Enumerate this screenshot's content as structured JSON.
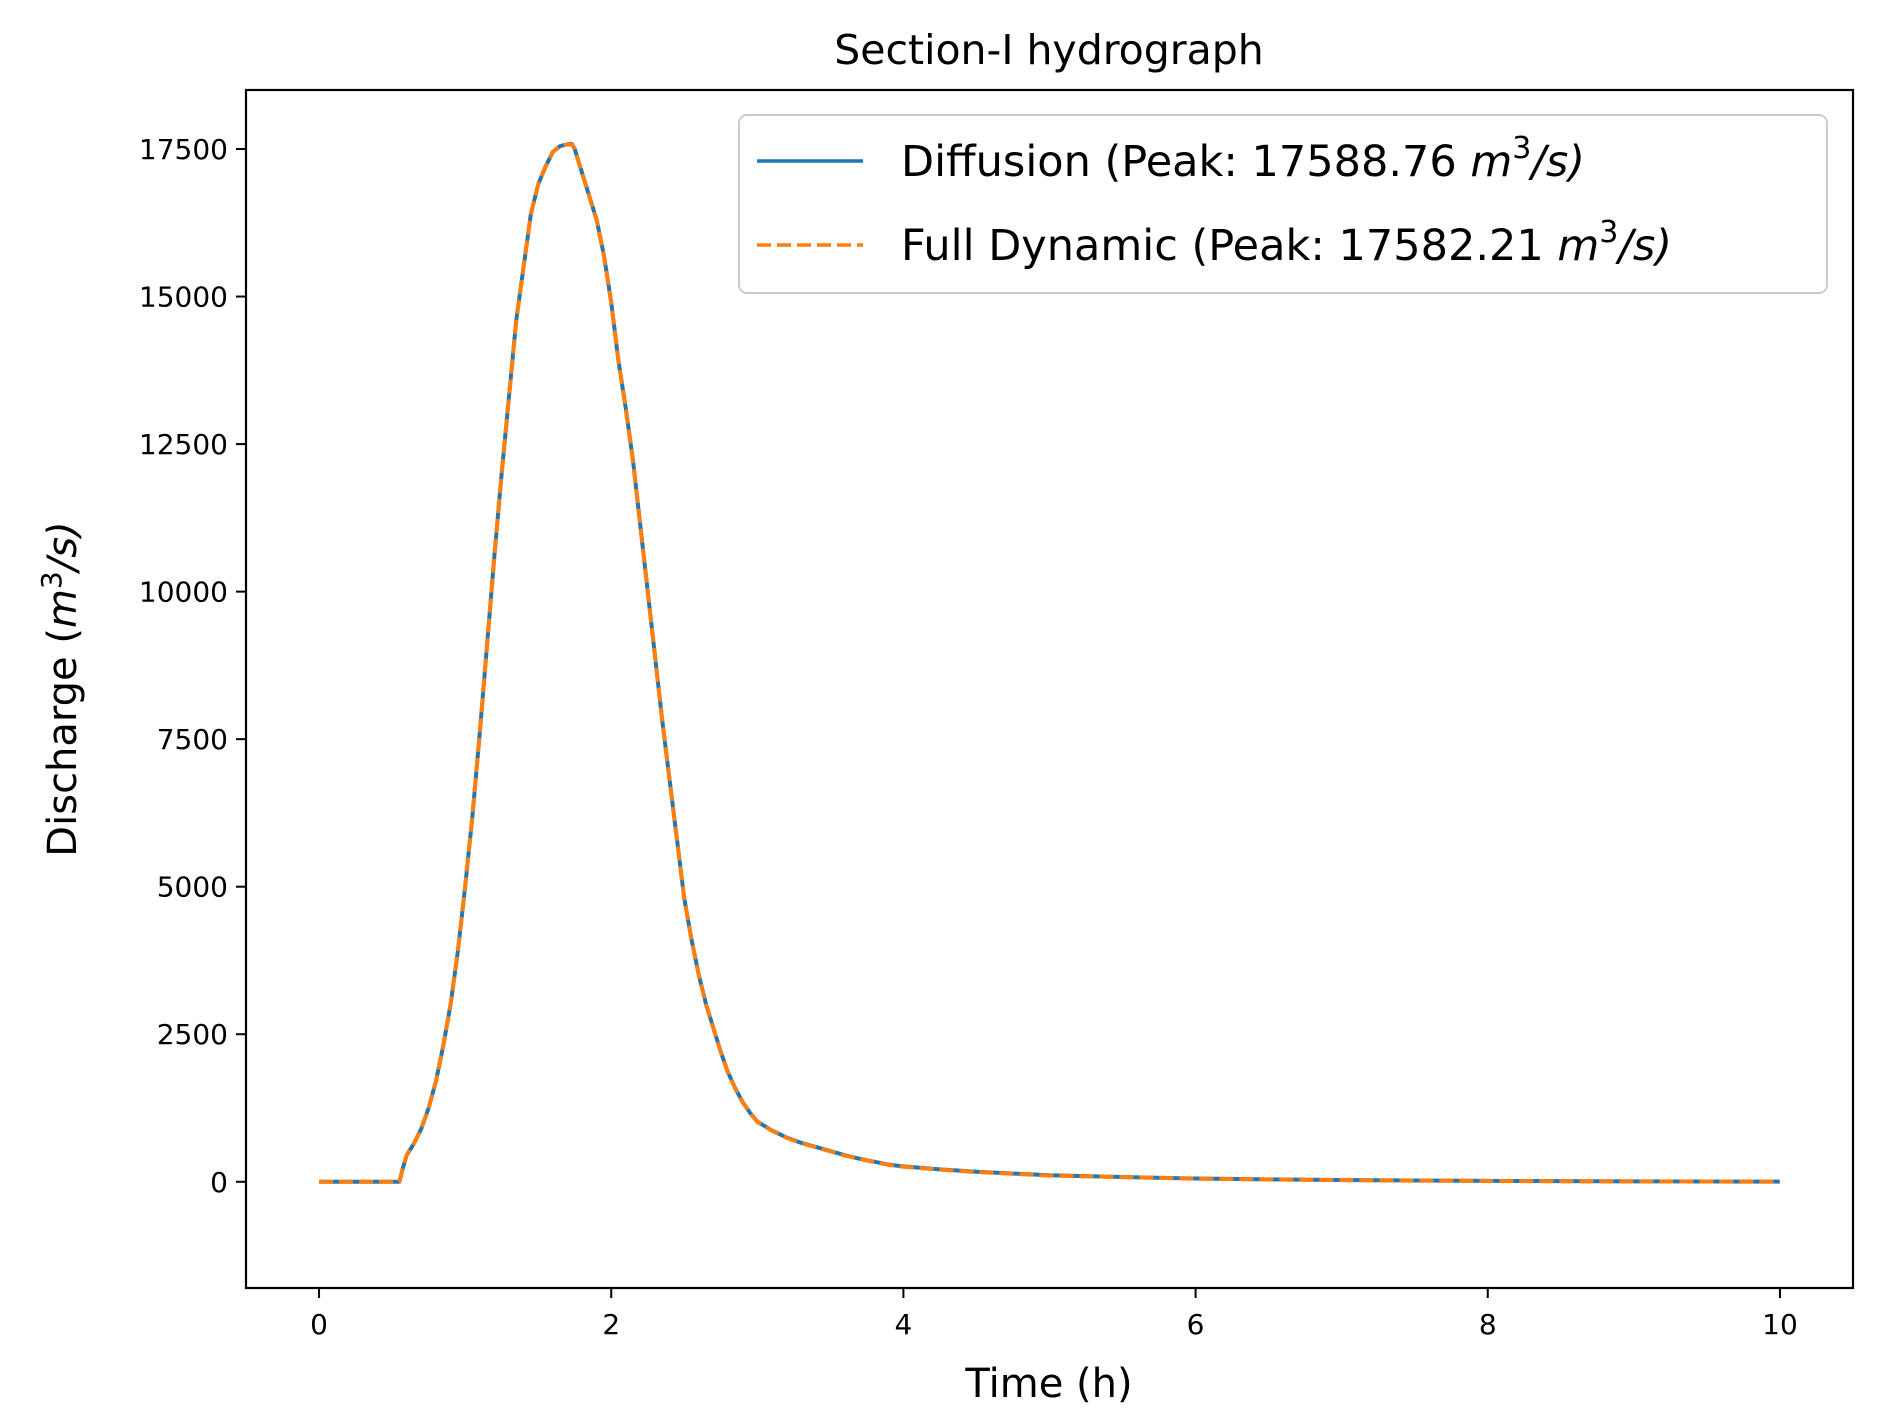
{
  "chart_data": {
    "type": "line",
    "title": "Section-I hydrograph",
    "xlabel": "Time (h)",
    "ylabel": {
      "prefix": "Discharge (",
      "var": "m",
      "sup": "3",
      "suffix": "/s)"
    },
    "xlim": [
      -0.5,
      10.5
    ],
    "ylim": [
      -1800,
      18500
    ],
    "xticks": [
      0,
      2,
      4,
      6,
      8,
      10
    ],
    "yticks": [
      0,
      2500,
      5000,
      7500,
      10000,
      12500,
      15000,
      17500
    ],
    "grid": false,
    "legend_position": "top-right",
    "series": [
      {
        "name": {
          "prefix": "Diffusion  (Peak: 17588.76 ",
          "var": "m",
          "sup": "3",
          "suffix": "/s)"
        },
        "color": "#1f77b4",
        "style": "solid",
        "x": [
          0,
          0.1,
          0.2,
          0.3,
          0.4,
          0.5,
          0.55,
          0.57,
          0.6,
          0.65,
          0.7,
          0.75,
          0.8,
          0.85,
          0.9,
          0.95,
          1.0,
          1.05,
          1.1,
          1.15,
          1.2,
          1.25,
          1.3,
          1.35,
          1.4,
          1.45,
          1.5,
          1.55,
          1.6,
          1.65,
          1.7,
          1.73,
          1.75,
          1.8,
          1.85,
          1.9,
          1.95,
          2.0,
          2.05,
          2.1,
          2.15,
          2.2,
          2.25,
          2.3,
          2.35,
          2.4,
          2.45,
          2.5,
          2.55,
          2.6,
          2.65,
          2.7,
          2.75,
          2.8,
          2.85,
          2.9,
          2.95,
          3.0,
          3.1,
          3.2,
          3.3,
          3.4,
          3.5,
          3.6,
          3.7,
          3.8,
          3.9,
          4.0,
          4.25,
          4.5,
          4.75,
          5.0,
          5.5,
          6.0,
          6.5,
          7.0,
          7.5,
          8.0,
          8.5,
          9.0,
          9.5,
          10.0
        ],
        "y": [
          0,
          0,
          0,
          0,
          0,
          0,
          0,
          200,
          450,
          650,
          900,
          1250,
          1700,
          2300,
          3000,
          3900,
          5000,
          6200,
          7600,
          9100,
          10600,
          12000,
          13300,
          14600,
          15500,
          16400,
          16900,
          17200,
          17450,
          17550,
          17580,
          17588.76,
          17500,
          17100,
          16700,
          16300,
          15700,
          14900,
          13900,
          13100,
          12200,
          11100,
          10000,
          8900,
          7800,
          6800,
          5800,
          4800,
          4100,
          3500,
          3000,
          2600,
          2200,
          1850,
          1580,
          1350,
          1170,
          1020,
          870,
          750,
          660,
          590,
          520,
          450,
          390,
          340,
          290,
          260,
          210,
          170,
          140,
          110,
          80,
          55,
          40,
          30,
          22,
          15,
          10,
          7,
          5,
          3
        ]
      },
      {
        "name": {
          "prefix": "Full Dynamic (Peak: 17582.21 ",
          "var": "m",
          "sup": "3",
          "suffix": "/s)"
        },
        "color": "#ff7f0e",
        "style": "dashed",
        "x": [
          0,
          0.1,
          0.2,
          0.3,
          0.4,
          0.5,
          0.55,
          0.57,
          0.6,
          0.65,
          0.7,
          0.75,
          0.8,
          0.85,
          0.9,
          0.95,
          1.0,
          1.05,
          1.1,
          1.15,
          1.2,
          1.25,
          1.3,
          1.35,
          1.4,
          1.45,
          1.5,
          1.55,
          1.6,
          1.65,
          1.7,
          1.73,
          1.75,
          1.8,
          1.85,
          1.9,
          1.95,
          2.0,
          2.05,
          2.1,
          2.15,
          2.2,
          2.25,
          2.3,
          2.35,
          2.4,
          2.45,
          2.5,
          2.55,
          2.6,
          2.65,
          2.7,
          2.75,
          2.8,
          2.85,
          2.9,
          2.95,
          3.0,
          3.1,
          3.2,
          3.3,
          3.4,
          3.5,
          3.6,
          3.7,
          3.8,
          3.9,
          4.0,
          4.25,
          4.5,
          4.75,
          5.0,
          5.5,
          6.0,
          6.5,
          7.0,
          7.5,
          8.0,
          8.5,
          9.0,
          9.5,
          10.0
        ],
        "y": [
          0,
          0,
          0,
          0,
          0,
          0,
          0,
          200,
          450,
          650,
          900,
          1250,
          1700,
          2300,
          3000,
          3900,
          5000,
          6200,
          7600,
          9100,
          10600,
          12000,
          13300,
          14600,
          15500,
          16400,
          16900,
          17200,
          17450,
          17550,
          17575,
          17582.21,
          17495,
          17095,
          16695,
          16295,
          15695,
          14895,
          13895,
          13095,
          12195,
          11095,
          9995,
          8895,
          7795,
          6795,
          5795,
          4795,
          4095,
          3495,
          2995,
          2595,
          2195,
          1845,
          1575,
          1345,
          1165,
          1015,
          865,
          745,
          655,
          585,
          515,
          445,
          385,
          335,
          285,
          255,
          205,
          165,
          135,
          105,
          78,
          53,
          38,
          28,
          20,
          14,
          9,
          6,
          4,
          2
        ]
      }
    ]
  }
}
